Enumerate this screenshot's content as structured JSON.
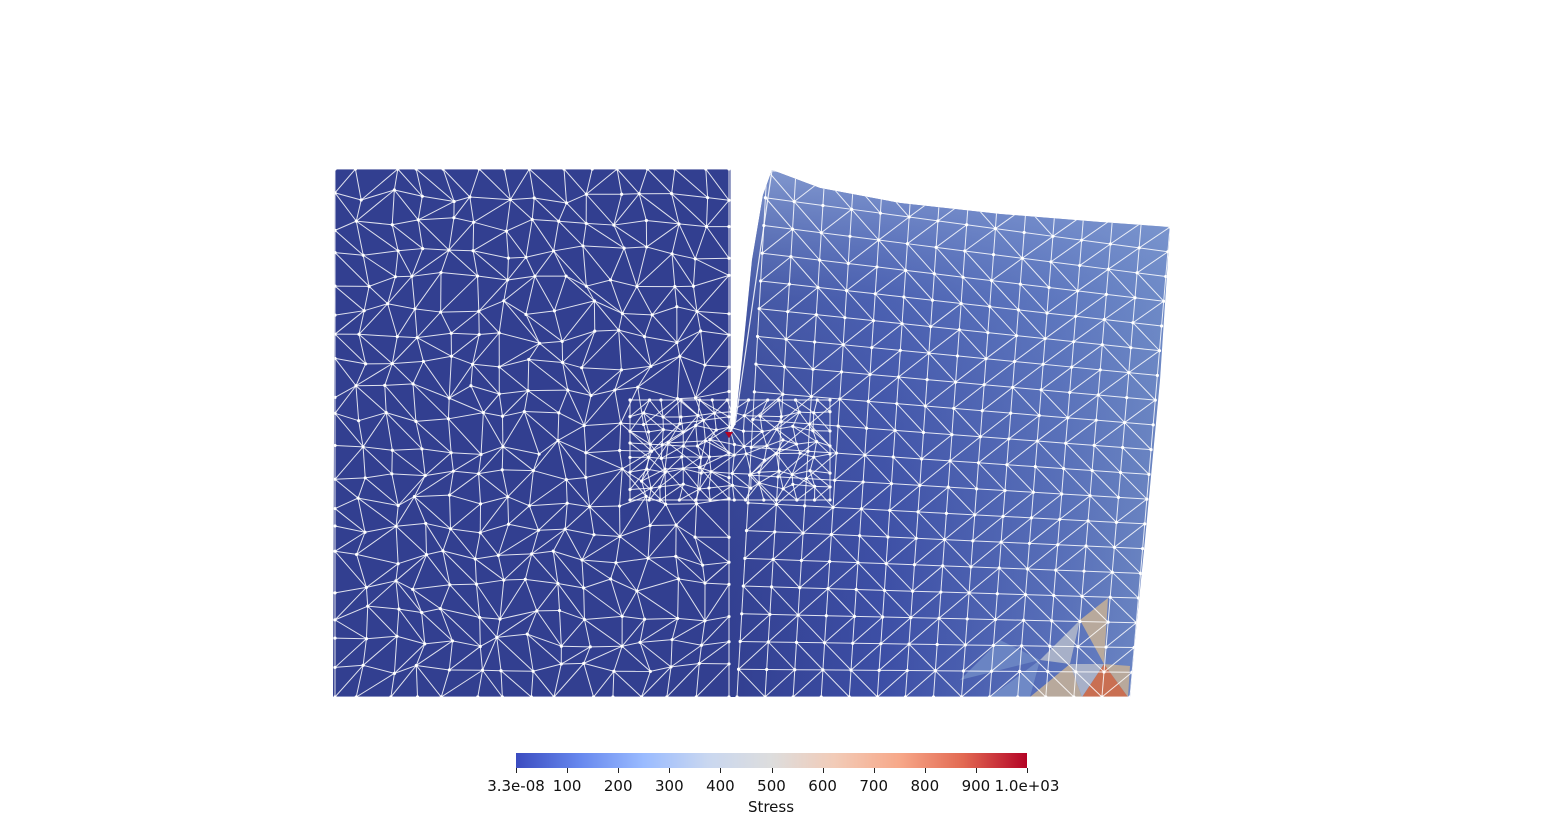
{
  "colorbar": {
    "title": "Stress",
    "min_label": "3.3e-08",
    "max_label": "1.0e+03",
    "range": [
      3.3e-08,
      1000
    ],
    "ticks": [
      "3.3e-08",
      "100",
      "200",
      "300",
      "400",
      "500",
      "600",
      "700",
      "800",
      "900",
      "1.0e+03"
    ],
    "tick_values": [
      0,
      100,
      200,
      300,
      400,
      500,
      600,
      700,
      800,
      900,
      1000
    ],
    "colormap": "coolwarm",
    "colors": [
      "#3b4cc0",
      "#6788ee",
      "#9abbff",
      "#c9d7f0",
      "#dddddd",
      "#f2cbb7",
      "#f7a889",
      "#e26952",
      "#b40426"
    ]
  },
  "mesh": {
    "field": "Stress",
    "edge_color": "#ffffff",
    "base_color": "#323f90",
    "crack_tip_color": "#b40426",
    "hot_corner_colors": [
      "#c96f52",
      "#b8a99c",
      "#a7b0c8"
    ]
  }
}
